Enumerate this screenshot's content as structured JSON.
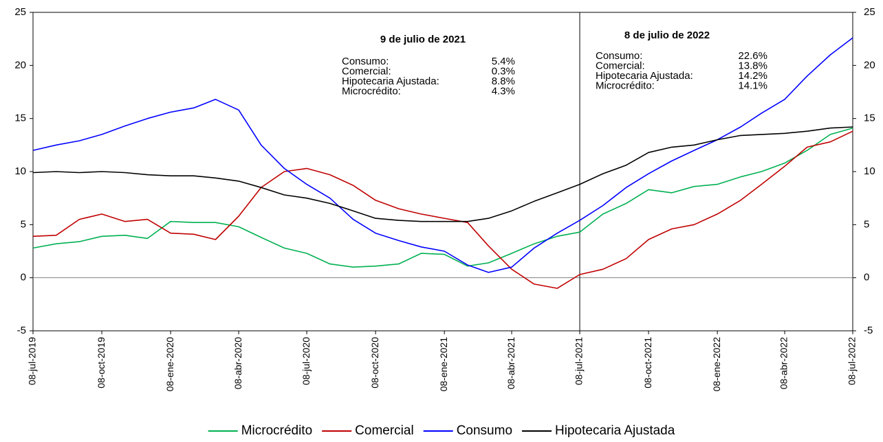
{
  "chart_data": {
    "type": "line",
    "x": [
      "2019-07-08",
      "2019-08-08",
      "2019-09-08",
      "2019-10-08",
      "2019-11-08",
      "2019-12-08",
      "2020-01-08",
      "2020-02-08",
      "2020-03-08",
      "2020-04-08",
      "2020-05-08",
      "2020-06-08",
      "2020-07-08",
      "2020-08-08",
      "2020-09-08",
      "2020-10-08",
      "2020-11-08",
      "2020-12-08",
      "2021-01-08",
      "2021-02-08",
      "2021-03-08",
      "2021-04-08",
      "2021-05-08",
      "2021-06-08",
      "2021-07-08",
      "2021-08-08",
      "2021-09-08",
      "2021-10-08",
      "2021-11-08",
      "2021-12-08",
      "2022-01-08",
      "2022-02-08",
      "2022-03-08",
      "2022-04-08",
      "2022-05-08",
      "2022-06-08",
      "2022-07-08"
    ],
    "series": [
      {
        "name": "Microcrédito",
        "color": "#00b050",
        "values": [
          2.8,
          3.2,
          3.4,
          3.9,
          4.0,
          3.7,
          5.3,
          5.2,
          5.2,
          4.8,
          3.8,
          2.8,
          2.3,
          1.3,
          1.0,
          1.1,
          1.3,
          2.3,
          2.2,
          1.1,
          1.4,
          2.3,
          3.2,
          3.9,
          4.3,
          6.0,
          7.0,
          8.3,
          8.0,
          8.6,
          8.8,
          9.5,
          10.0,
          10.8,
          12.0,
          13.5,
          14.1
        ]
      },
      {
        "name": "Comercial",
        "color": "#c00000",
        "values": [
          3.9,
          4.0,
          5.5,
          6.0,
          5.3,
          5.5,
          4.2,
          4.1,
          3.6,
          5.8,
          8.5,
          10.0,
          10.3,
          9.7,
          8.7,
          7.3,
          6.5,
          6.0,
          5.6,
          5.2,
          3.0,
          0.8,
          -0.6,
          -1.0,
          0.3,
          0.8,
          1.8,
          3.6,
          4.6,
          5.0,
          6.0,
          7.3,
          8.8,
          10.5,
          12.3,
          12.8,
          13.8
        ]
      },
      {
        "name": "Consumo",
        "color": "#0000ff",
        "values": [
          12.0,
          12.5,
          12.9,
          13.5,
          14.3,
          15.0,
          15.6,
          16.0,
          16.8,
          15.8,
          12.5,
          10.3,
          8.8,
          7.5,
          5.5,
          4.2,
          3.5,
          2.9,
          2.5,
          1.2,
          0.5,
          1.0,
          2.8,
          4.2,
          5.4,
          6.8,
          8.5,
          9.8,
          11.0,
          12.0,
          13.0,
          14.2,
          15.5,
          16.8,
          19.0,
          21.0,
          22.6
        ]
      },
      {
        "name": "Hipotecaria Ajustada",
        "color": "#000000",
        "values": [
          9.9,
          10.0,
          9.9,
          10.0,
          9.9,
          9.7,
          9.6,
          9.6,
          9.4,
          9.1,
          8.5,
          7.8,
          7.5,
          7.0,
          6.3,
          5.6,
          5.4,
          5.3,
          5.3,
          5.3,
          5.6,
          6.3,
          7.2,
          8.0,
          8.8,
          9.8,
          10.6,
          11.8,
          12.3,
          12.5,
          13.0,
          13.4,
          13.5,
          13.6,
          13.8,
          14.1,
          14.2
        ]
      }
    ],
    "xlim": [
      "2019-07-08",
      "2022-07-08"
    ],
    "xticks": [
      {
        "value": "2019-07-08",
        "label": "08-jul-2019"
      },
      {
        "value": "2019-10-08",
        "label": "08-oct-2019"
      },
      {
        "value": "2020-01-08",
        "label": "08-ene-2020"
      },
      {
        "value": "2020-04-08",
        "label": "08-abr-2020"
      },
      {
        "value": "2020-07-08",
        "label": "08-jul-2020"
      },
      {
        "value": "2020-10-08",
        "label": "08-oct-2020"
      },
      {
        "value": "2021-01-08",
        "label": "08-ene-2021"
      },
      {
        "value": "2021-04-08",
        "label": "08-abr-2021"
      },
      {
        "value": "2021-07-08",
        "label": "08-jul-2021"
      },
      {
        "value": "2021-10-08",
        "label": "08-oct-2021"
      },
      {
        "value": "2022-01-08",
        "label": "08-ene-2022"
      },
      {
        "value": "2022-04-08",
        "label": "08-abr-2022"
      },
      {
        "value": "2022-07-08",
        "label": "08-jul-2022"
      }
    ],
    "ylim": [
      -5,
      25
    ],
    "yticks": [
      -5,
      0,
      5,
      10,
      15,
      20,
      25
    ],
    "y2lim": [
      -5,
      25
    ],
    "y2ticks": [
      -5,
      0,
      5,
      10,
      15,
      20,
      25
    ],
    "vline": "2021-07-08",
    "legend": "bottom",
    "annotations": [
      {
        "title": "9 de julio de 2021",
        "rows": [
          {
            "label": "Consumo:",
            "text": "5.4%"
          },
          {
            "label": "Comercial:",
            "text": "0.3%"
          },
          {
            "label": "Hipotecaria Ajustada:",
            "text": "8.8%"
          },
          {
            "label": "Microcrédito:",
            "text": "4.3%"
          }
        ]
      },
      {
        "title": "8 de julio de 2022",
        "rows": [
          {
            "label": "Consumo:",
            "text": "22.6%"
          },
          {
            "label": "Comercial:",
            "text": "13.8%"
          },
          {
            "label": "Hipotecaria Ajustada:",
            "text": "14.2%"
          },
          {
            "label": "Microcrédito:",
            "text": "14.1%"
          }
        ]
      }
    ]
  }
}
